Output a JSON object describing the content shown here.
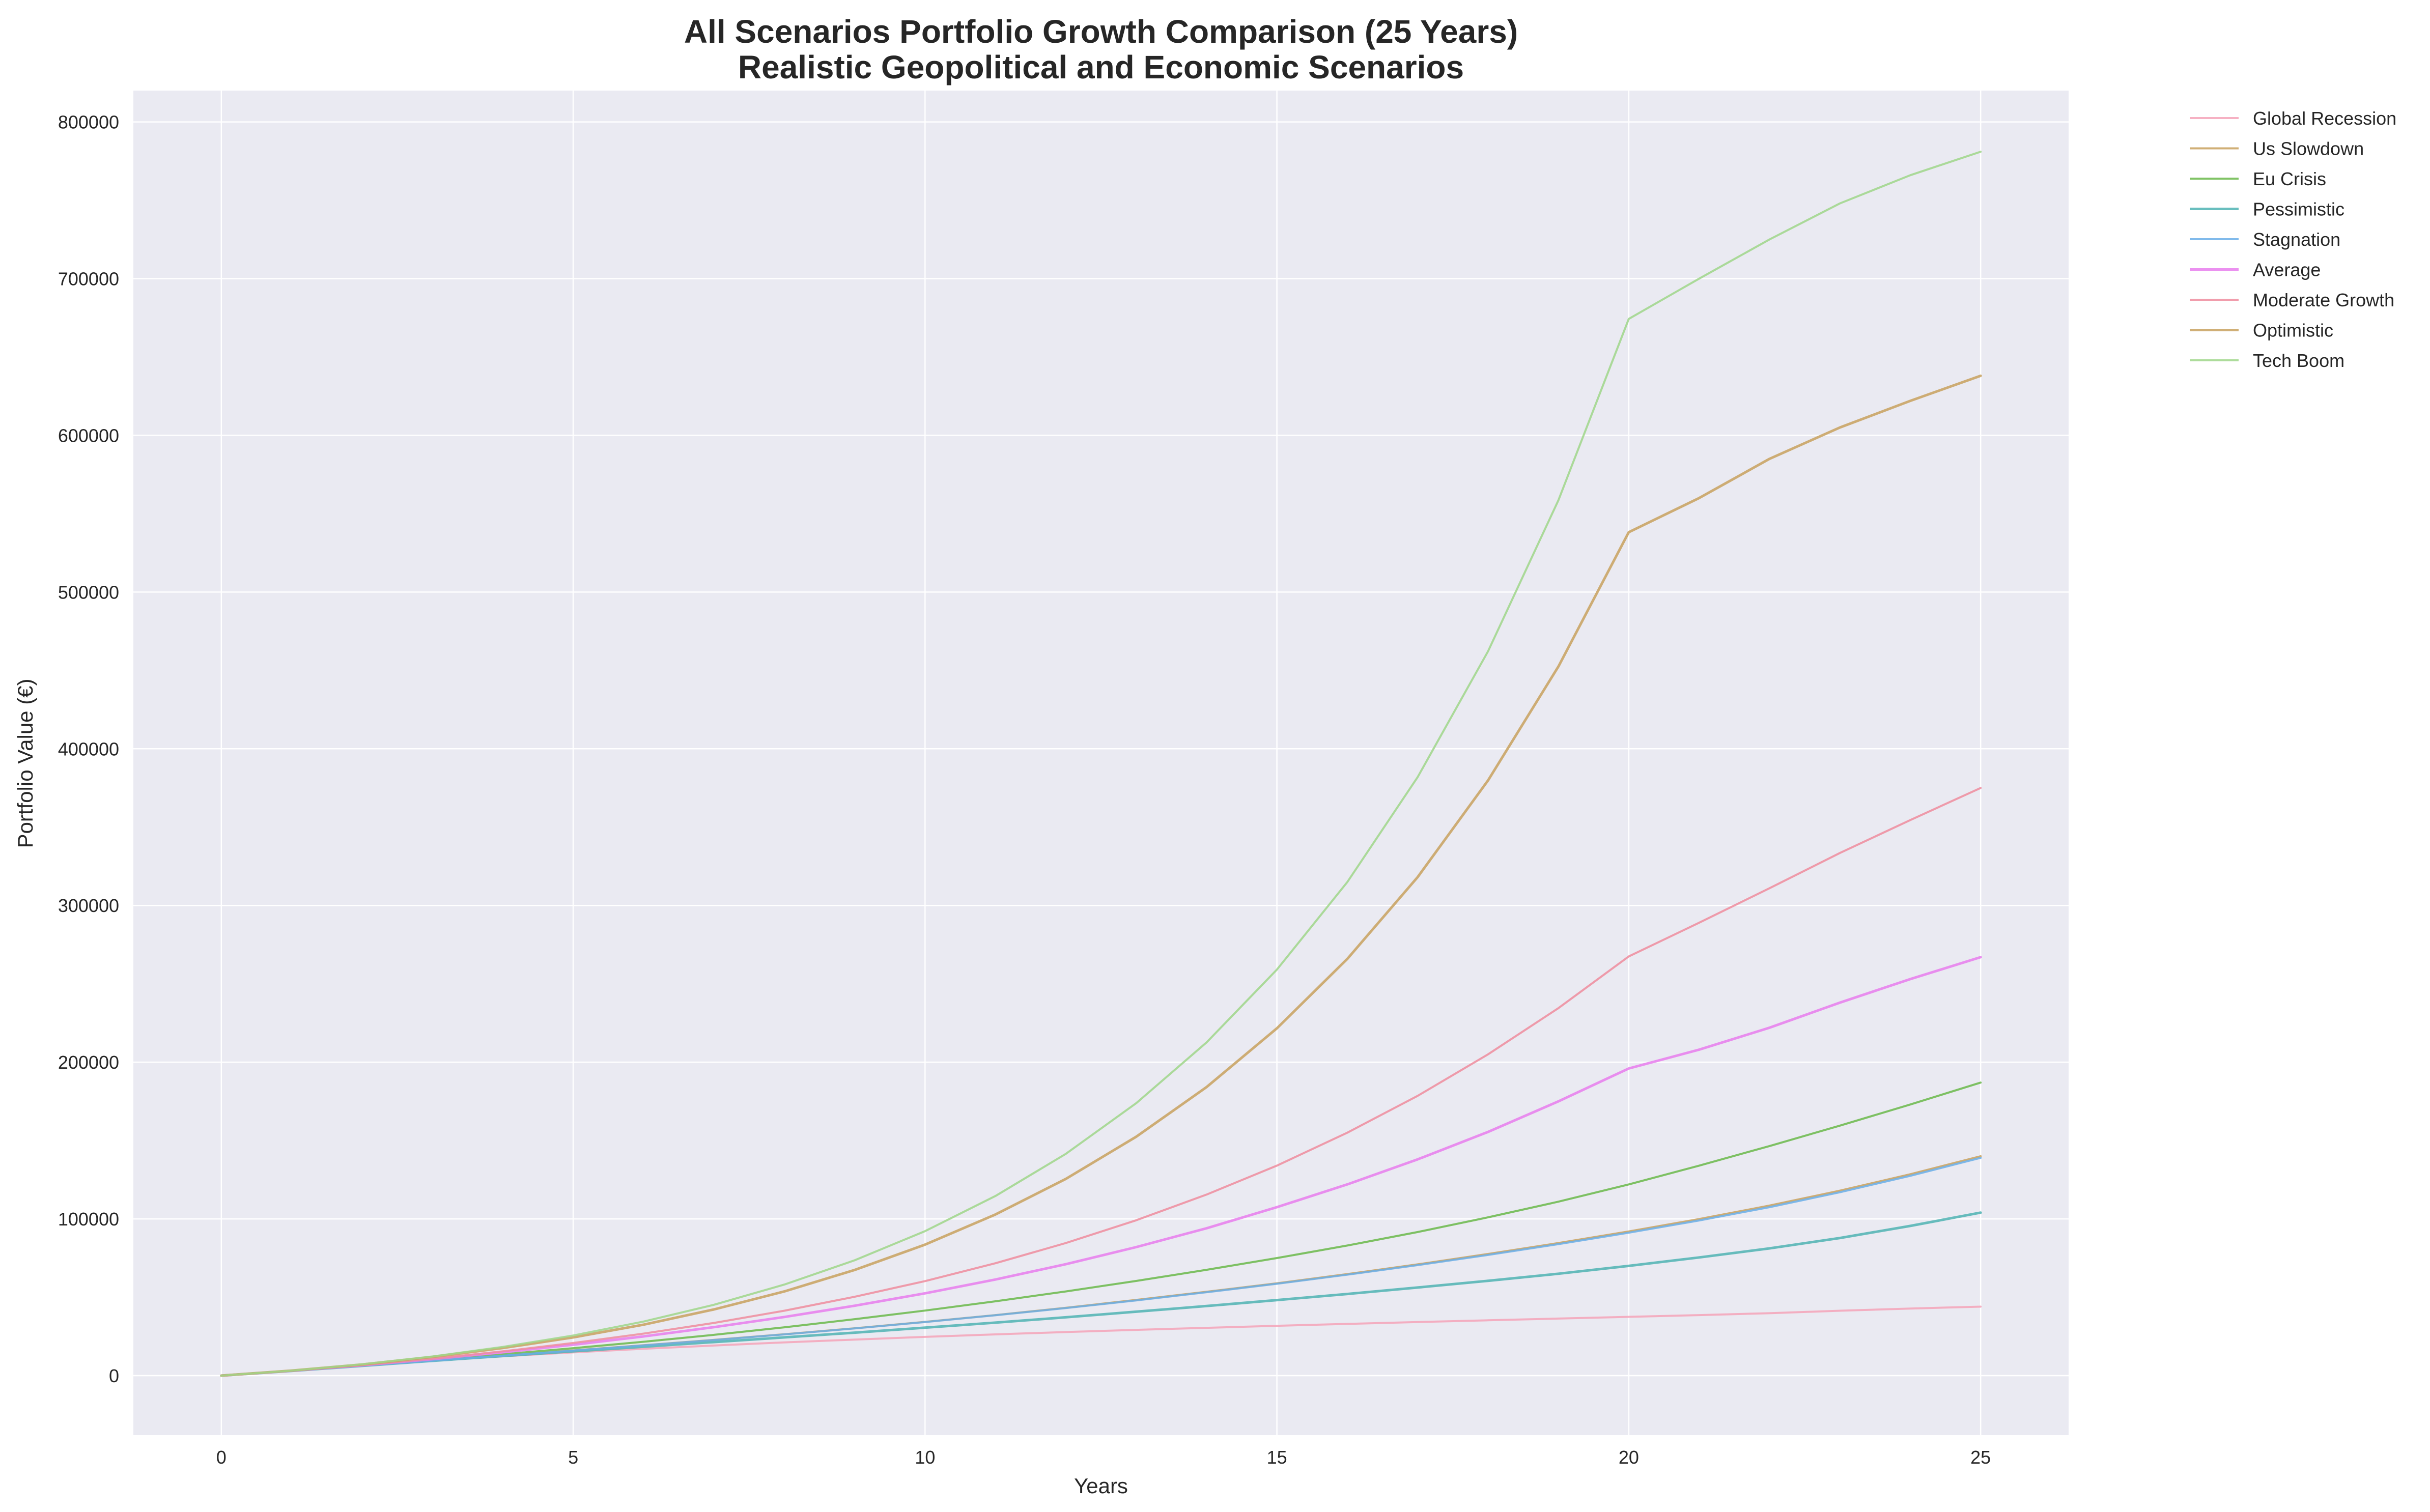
{
  "chart_data": {
    "type": "line",
    "title": "All Scenarios Portfolio Growth Comparison (25 Years)",
    "subtitle": "Realistic Geopolitical and Economic Scenarios",
    "xlabel": "Years",
    "ylabel": "Portfolio Value (€)",
    "xlim": [
      -1.25,
      26.25
    ],
    "ylim": [
      -38000,
      820000
    ],
    "xticks": [
      0,
      5,
      10,
      15,
      20,
      25
    ],
    "yticks": [
      0,
      100000,
      200000,
      300000,
      400000,
      500000,
      600000,
      700000,
      800000
    ],
    "grid": true,
    "legend_position": "outside-top-right",
    "background_color": "#eaeaf2",
    "x": [
      0,
      1,
      2,
      3,
      4,
      5,
      6,
      7,
      8,
      9,
      10,
      11,
      12,
      13,
      14,
      15,
      16,
      17,
      18,
      19,
      20,
      21,
      22,
      23,
      24,
      25
    ],
    "series": [
      {
        "name": "Global Recession",
        "color": "#f5a3b8",
        "width": 4,
        "values": [
          0,
          3100,
          6700,
          9600,
          12300,
          14800,
          17100,
          19200,
          21200,
          23000,
          24700,
          26300,
          27800,
          29200,
          30500,
          31800,
          33000,
          34200,
          35300,
          36400,
          37500,
          38600,
          39800,
          41400,
          42800,
          44000
        ]
      },
      {
        "name": "Us Slowdown",
        "color": "#c8a15e",
        "width": 4,
        "values": [
          0,
          3000,
          6300,
          9600,
          12800,
          16100,
          19400,
          22800,
          26400,
          30200,
          34300,
          38600,
          43300,
          48300,
          53500,
          58900,
          64800,
          71000,
          77600,
          84600,
          92000,
          99900,
          108500,
          118000,
          128500,
          140000
        ]
      },
      {
        "name": "Eu Crisis",
        "color": "#6ab84a",
        "width": 4,
        "values": [
          0,
          3000,
          6400,
          9900,
          13600,
          17500,
          21600,
          26000,
          30800,
          36000,
          41500,
          47400,
          53700,
          60400,
          67500,
          75000,
          83000,
          91600,
          101000,
          111000,
          122000,
          134000,
          146500,
          159500,
          173000,
          187000
        ]
      },
      {
        "name": "Pessimistic",
        "color": "#4fb3b3",
        "width": 5,
        "values": [
          0,
          3000,
          6200,
          9400,
          12500,
          15500,
          18400,
          21400,
          24400,
          27400,
          30600,
          33800,
          37200,
          40800,
          44400,
          48200,
          52100,
          56200,
          60500,
          65000,
          70000,
          75400,
          81200,
          87800,
          95500,
          104000
        ]
      },
      {
        "name": "Stagnation",
        "color": "#6aaee8",
        "width": 4,
        "values": [
          0,
          3000,
          6300,
          9500,
          12700,
          16000,
          19300,
          22700,
          26300,
          30100,
          34200,
          38500,
          43100,
          48000,
          53200,
          58600,
          64400,
          70500,
          77000,
          83900,
          91200,
          99000,
          107500,
          117000,
          127500,
          139000
        ]
      },
      {
        "name": "Average",
        "color": "#e87ded",
        "width": 5,
        "values": [
          0,
          3100,
          6600,
          10500,
          14900,
          19700,
          25000,
          30900,
          37400,
          44600,
          52500,
          61300,
          71100,
          82000,
          94000,
          107500,
          122000,
          138000,
          155500,
          175000,
          196000,
          208000,
          222000,
          238000,
          253000,
          267000
        ]
      },
      {
        "name": "Moderate Growth",
        "color": "#ee8c9e",
        "width": 4,
        "values": [
          0,
          3100,
          6700,
          10800,
          15500,
          20800,
          26800,
          33600,
          41400,
          50300,
          60300,
          71700,
          84600,
          99100,
          115500,
          134000,
          155000,
          178500,
          205000,
          234500,
          267500,
          289000,
          311000,
          333500,
          354500,
          375000
        ]
      },
      {
        "name": "Optimistic",
        "color": "#c8a15e",
        "width": 5,
        "values": [
          0,
          3200,
          7100,
          11900,
          17600,
          24400,
          32500,
          42200,
          53700,
          67400,
          83600,
          102800,
          125500,
          152400,
          184100,
          221600,
          265900,
          318100,
          379800,
          452500,
          538200,
          560000,
          585000,
          605000,
          622000,
          638000
        ]
      },
      {
        "name": "Tech Boom",
        "color": "#9fd68a",
        "width": 4,
        "values": [
          0,
          3200,
          7200,
          12200,
          18300,
          25600,
          34500,
          45200,
          58100,
          73600,
          92200,
          114600,
          141500,
          173800,
          212600,
          259100,
          314900,
          381900,
          462200,
          558600,
          674300,
          700000,
          725000,
          748000,
          766000,
          781000
        ]
      }
    ]
  }
}
